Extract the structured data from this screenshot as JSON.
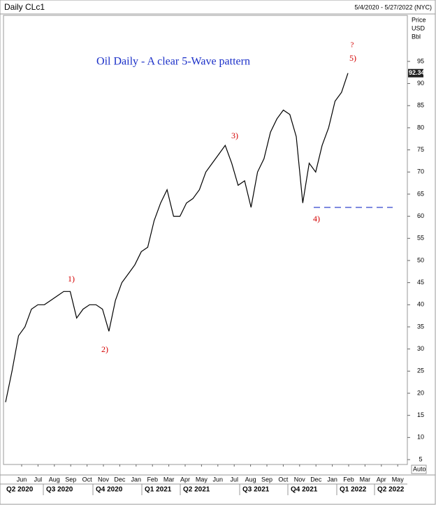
{
  "chart_data": {
    "type": "line",
    "title": "Daily CLc1",
    "date_range": "5/4/2020 - 5/27/2022 (NYC)",
    "axis_header": [
      "Price",
      "USD",
      "Bbl"
    ],
    "scale_mode": "Auto",
    "annotation": "Oil Daily - A clear 5-Wave pattern",
    "wave_labels": [
      "1)",
      "2)",
      "3)",
      "4)",
      "5)",
      "?"
    ],
    "months": [
      "Jun",
      "Jul",
      "Aug",
      "Sep",
      "Oct",
      "Nov",
      "Dec",
      "Jan",
      "Feb",
      "Mar",
      "Apr",
      "May",
      "Jun",
      "Jul",
      "Aug",
      "Sep",
      "Oct",
      "Nov",
      "Dec",
      "Jan",
      "Feb",
      "Mar",
      "Apr",
      "May"
    ],
    "quarters": [
      "Q2 2020",
      "Q3 2020",
      "Q4 2020",
      "Q1 2021",
      "Q2 2021",
      "Q3 2021",
      "Q4 2021",
      "Q1 2022",
      "Q2 2022"
    ],
    "color": "#000000",
    "values": [
      18,
      25,
      33,
      35,
      39,
      40,
      40,
      41,
      42,
      43,
      43,
      37,
      39,
      40,
      40,
      39,
      34,
      41,
      45,
      47,
      49,
      52,
      53,
      59,
      63,
      66,
      60,
      60,
      63,
      64,
      66,
      70,
      72,
      74,
      76,
      72,
      67,
      68,
      62,
      70,
      73,
      79,
      82,
      84,
      83,
      78,
      63,
      72,
      70,
      76,
      80,
      86,
      88,
      92.34
    ],
    "support": 62,
    "ylim": [
      3.9,
      105.4
    ],
    "yticks": [
      5,
      10,
      15,
      20,
      25,
      30,
      35,
      40,
      45,
      50,
      55,
      60,
      65,
      70,
      75,
      80,
      85,
      90,
      95
    ]
  }
}
